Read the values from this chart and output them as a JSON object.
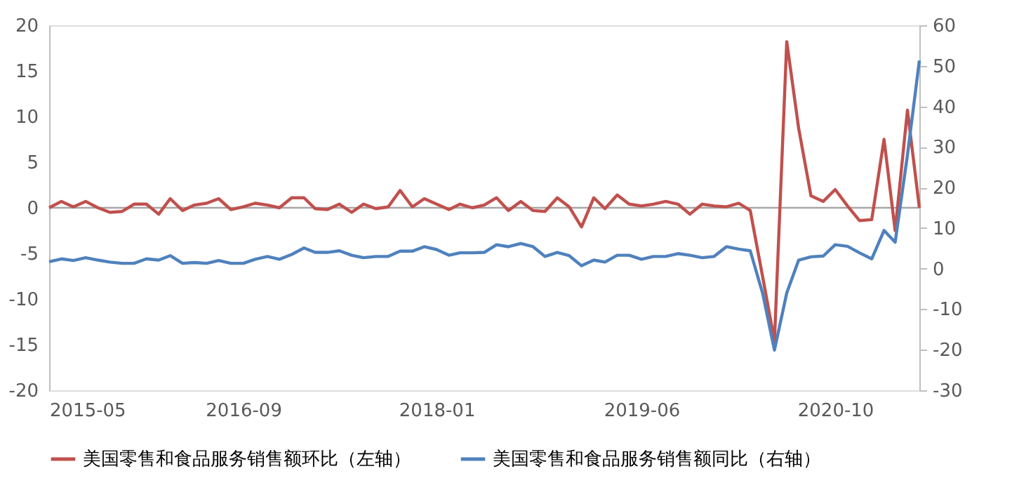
{
  "chart_data": {
    "type": "line",
    "x": [
      "2015-05",
      "2015-06",
      "2015-07",
      "2015-08",
      "2015-09",
      "2015-10",
      "2015-11",
      "2015-12",
      "2016-01",
      "2016-02",
      "2016-03",
      "2016-04",
      "2016-05",
      "2016-06",
      "2016-07",
      "2016-08",
      "2016-09",
      "2016-10",
      "2016-11",
      "2016-12",
      "2017-01",
      "2017-02",
      "2017-03",
      "2017-04",
      "2017-05",
      "2017-06",
      "2017-07",
      "2017-08",
      "2017-09",
      "2017-10",
      "2017-11",
      "2017-12",
      "2018-01",
      "2018-02",
      "2018-03",
      "2018-04",
      "2018-05",
      "2018-06",
      "2018-07",
      "2018-08",
      "2018-09",
      "2018-10",
      "2018-11",
      "2018-12",
      "2019-01",
      "2019-02",
      "2019-03",
      "2019-04",
      "2019-05",
      "2019-06",
      "2019-07",
      "2019-08",
      "2019-09",
      "2019-10",
      "2019-11",
      "2019-12",
      "2020-01",
      "2020-02",
      "2020-03",
      "2020-04",
      "2020-05",
      "2020-06",
      "2020-07",
      "2020-08",
      "2020-09",
      "2020-10",
      "2020-11",
      "2020-12",
      "2021-01",
      "2021-02",
      "2021-03",
      "2021-04",
      "2021-05"
    ],
    "series": [
      {
        "name": "美国零售和食品服务销售额环比（左轴）",
        "color": "#c0504d",
        "values": [
          0,
          0.7,
          0.1,
          0.7,
          0,
          -0.5,
          -0.4,
          0.4,
          0.4,
          -0.7,
          1.0,
          -0.3,
          0.3,
          0.5,
          1.0,
          -0.2,
          0.1,
          0.5,
          0.3,
          0,
          1.1,
          1.1,
          -0.1,
          -0.2,
          0.4,
          -0.5,
          0.4,
          -0.1,
          0.1,
          1.9,
          0.1,
          1.0,
          0.4,
          -0.2,
          0.4,
          0,
          0.3,
          1.1,
          -0.3,
          0.7,
          -0.3,
          -0.4,
          1.1,
          0.1,
          -2.1,
          1.1,
          -0.1,
          1.4,
          0.4,
          0.2,
          0.4,
          0.7,
          0.4,
          -0.7,
          0.4,
          0.2,
          0.1,
          0.5,
          -0.3,
          -7.5,
          -14.6,
          18.2,
          8.7,
          1.3,
          0.7,
          2.0,
          0.2,
          -1.4,
          -1.3,
          7.5,
          -2.5,
          10.7,
          0.0
        ]
      },
      {
        "name": "美国零售和食品服务销售额同比（右轴）",
        "color": "#4f81bd",
        "axis": "y2",
        "values": [
          1.7,
          2.4,
          2.0,
          2.7,
          2.1,
          1.6,
          1.3,
          1.3,
          2.4,
          2.1,
          3.2,
          1.3,
          1.5,
          1.3,
          2.0,
          1.3,
          1.3,
          2.3,
          3.0,
          2.3,
          3.5,
          5.1,
          4.0,
          4.0,
          4.4,
          3.3,
          2.7,
          3.0,
          3.0,
          4.3,
          4.3,
          5.4,
          4.7,
          3.3,
          3.9,
          3.9,
          4.0,
          5.9,
          5.4,
          6.2,
          5.4,
          3.0,
          4.0,
          3.2,
          0.7,
          2.1,
          1.6,
          3.3,
          3.3,
          2.3,
          3.0,
          3.0,
          3.7,
          3.3,
          2.7,
          3.0,
          5.4,
          4.8,
          4.4,
          -6.0,
          -20.1,
          -6.0,
          2.1,
          2.9,
          3.1,
          5.9,
          5.5,
          3.9,
          2.4,
          9.4,
          6.5,
          28,
          51.3
        ]
      }
    ],
    "xlim": [
      "2015-05",
      "2021-05"
    ],
    "xticks": [
      "2015-05",
      "2016-09",
      "2018-01",
      "2019-06",
      "2020-10"
    ],
    "ylim": [
      -20,
      20
    ],
    "yticks": [
      -20,
      -15,
      -10,
      -5,
      0,
      5,
      10,
      15,
      20
    ],
    "y2lim": [
      -30,
      60
    ],
    "y2ticks": [
      -30,
      -20,
      -10,
      0,
      10,
      20,
      30,
      40,
      50,
      60
    ],
    "ref_lines": [
      {
        "axis": "y",
        "value": 0,
        "color": "#a6a6a6"
      }
    ],
    "grid": false,
    "legend": "bottom",
    "marker": "none",
    "line_style": "solid"
  }
}
